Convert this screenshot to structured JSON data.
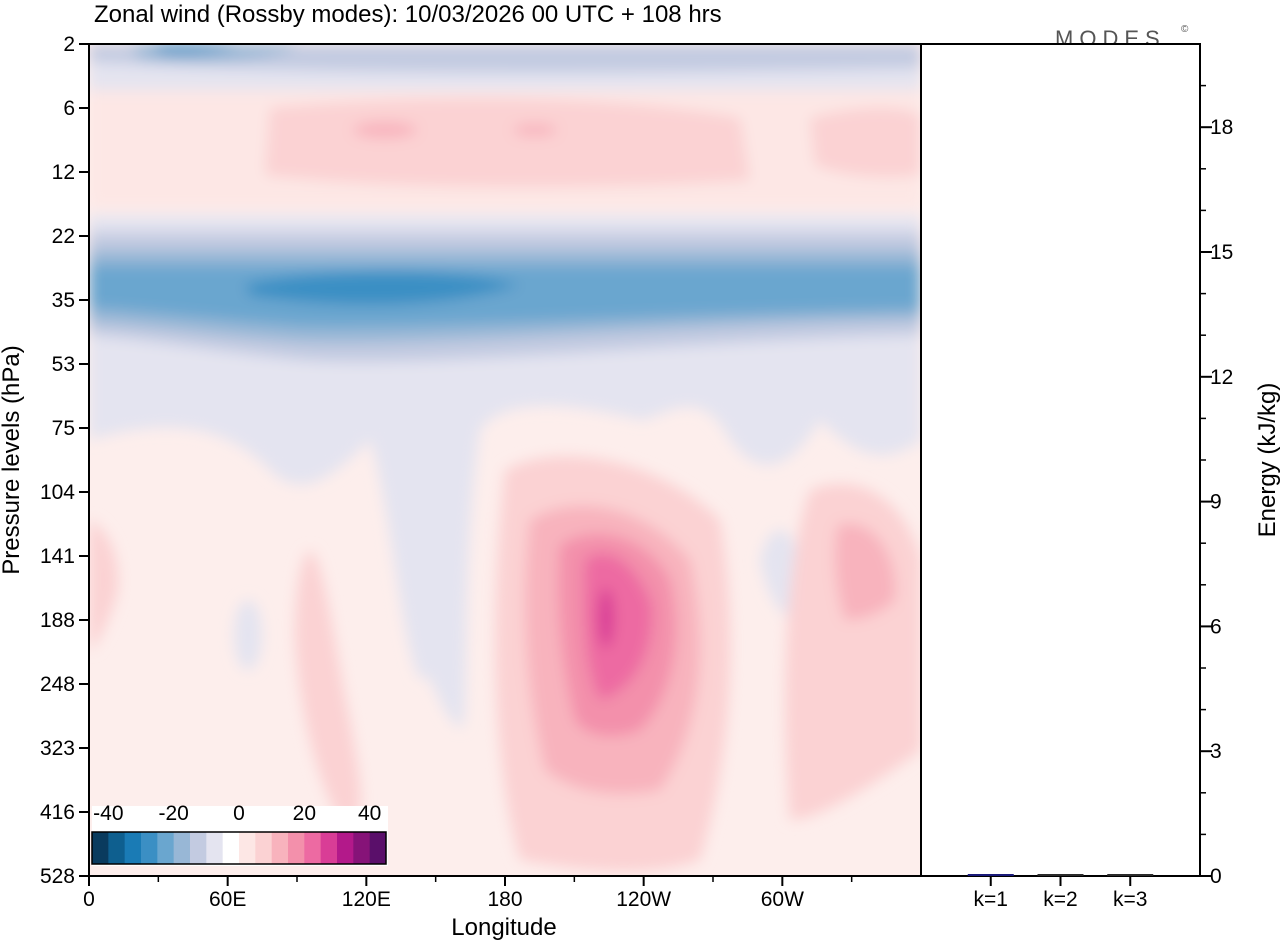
{
  "chart_data": {
    "type": "contour",
    "title": "Zonal wind (Rossby modes):  10/03/2026  00 UTC  + 108 hrs",
    "brand": "MODES",
    "brand_mark": "©",
    "left_panel": {
      "xlabel": "Longitude",
      "ylabel": "Pressure levels (hPa)",
      "x_ticks": [
        "0",
        "60E",
        "120E",
        "180",
        "120W",
        "60W"
      ],
      "y_ticks": [
        "2",
        "6",
        "12",
        "22",
        "35",
        "53",
        "75",
        "104",
        "141",
        "188",
        "248",
        "323",
        "416",
        "528"
      ],
      "colorbar": {
        "labels": [
          "-40",
          "-20",
          "0",
          "20",
          "40"
        ],
        "range": [
          -45,
          45
        ],
        "colors": [
          "#0a3b5e",
          "#0e5f8f",
          "#1a7bb5",
          "#3b8fc4",
          "#6aa6cf",
          "#98b7d6",
          "#c3cbe1",
          "#e4e4f0",
          "#ffffff",
          "#fde7e5",
          "#fbd2d3",
          "#f8b3bd",
          "#f390ab",
          "#ed6aa2",
          "#d93d96",
          "#b3198a",
          "#861378",
          "#5a0f6a"
        ]
      }
    },
    "right_panel": {
      "type": "bar",
      "ylabel": "Energy (kJ/kg)",
      "y_ticks": [
        "0",
        "3",
        "6",
        "9",
        "12",
        "15",
        "18"
      ],
      "ylim": [
        0,
        20
      ],
      "categories": [
        "k=1",
        "k=2",
        "k=3"
      ],
      "values": [
        0.04,
        0.03,
        0.02
      ],
      "bar_colors": [
        "#1a1a7a",
        "#2a2a2a",
        "#2a2a2a"
      ]
    }
  }
}
